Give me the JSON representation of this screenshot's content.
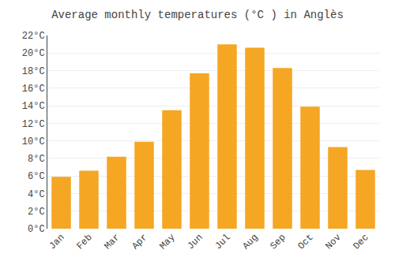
{
  "chart_data": {
    "type": "bar",
    "title": "Average monthly temperatures (°C ) in Anglès",
    "categories": [
      "Jan",
      "Feb",
      "Mar",
      "Apr",
      "May",
      "Jun",
      "Jul",
      "Aug",
      "Sep",
      "Oct",
      "Nov",
      "Dec"
    ],
    "values": [
      5.9,
      6.6,
      8.2,
      9.9,
      13.5,
      17.7,
      21.0,
      20.6,
      18.3,
      13.9,
      9.3,
      6.7
    ],
    "color": "#F5A623",
    "ylim": [
      0,
      22
    ],
    "yticks": [
      {
        "value": 0,
        "label": "0°C"
      },
      {
        "value": 2,
        "label": "2°C"
      },
      {
        "value": 4,
        "label": "4°C"
      },
      {
        "value": 6,
        "label": "6°C"
      },
      {
        "value": 8,
        "label": "8°C"
      },
      {
        "value": 10,
        "label": "10°C"
      },
      {
        "value": 12,
        "label": "12°C"
      },
      {
        "value": 14,
        "label": "14°C"
      },
      {
        "value": 16,
        "label": "16°C"
      },
      {
        "value": 18,
        "label": "18°C"
      },
      {
        "value": 20,
        "label": "20°C"
      },
      {
        "value": 22,
        "label": "22°C"
      }
    ],
    "grid": true
  }
}
